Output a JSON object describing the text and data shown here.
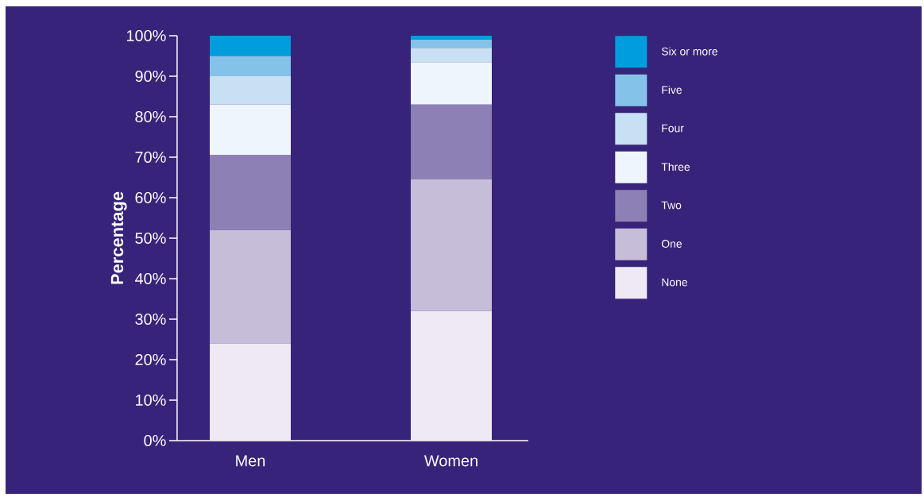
{
  "chart_data": {
    "type": "bar",
    "stacked": true,
    "ylabel": "Percentage",
    "categories": [
      "Men",
      "Women"
    ],
    "series": [
      {
        "name": "None",
        "color": "#eee9f4",
        "values": [
          24,
          32
        ]
      },
      {
        "name": "One",
        "color": "#c6bed9",
        "values": [
          28,
          32.5
        ]
      },
      {
        "name": "Two",
        "color": "#8d80b4",
        "values": [
          18.5,
          18.5
        ]
      },
      {
        "name": "Three",
        "color": "#eef5fc",
        "values": [
          12.5,
          10.5
        ]
      },
      {
        "name": "Four",
        "color": "#c7e0f4",
        "values": [
          7,
          3.5
        ]
      },
      {
        "name": "Five",
        "color": "#85c2e9",
        "values": [
          5,
          2
        ]
      },
      {
        "name": "Six or more",
        "color": "#009ddc",
        "values": [
          5,
          1
        ]
      }
    ],
    "ylim": [
      0,
      100
    ],
    "yticks": [
      {
        "value": 0,
        "label": "0%"
      },
      {
        "value": 10,
        "label": "10%"
      },
      {
        "value": 20,
        "label": "20%"
      },
      {
        "value": 30,
        "label": "30%"
      },
      {
        "value": 40,
        "label": "40%"
      },
      {
        "value": 50,
        "label": "50%"
      },
      {
        "value": 60,
        "label": "60%"
      },
      {
        "value": 70,
        "label": "70%"
      },
      {
        "value": 80,
        "label": "80%"
      },
      {
        "value": 90,
        "label": "90%"
      },
      {
        "value": 100,
        "label": "100%"
      }
    ],
    "legend": "top right",
    "grid": false
  }
}
